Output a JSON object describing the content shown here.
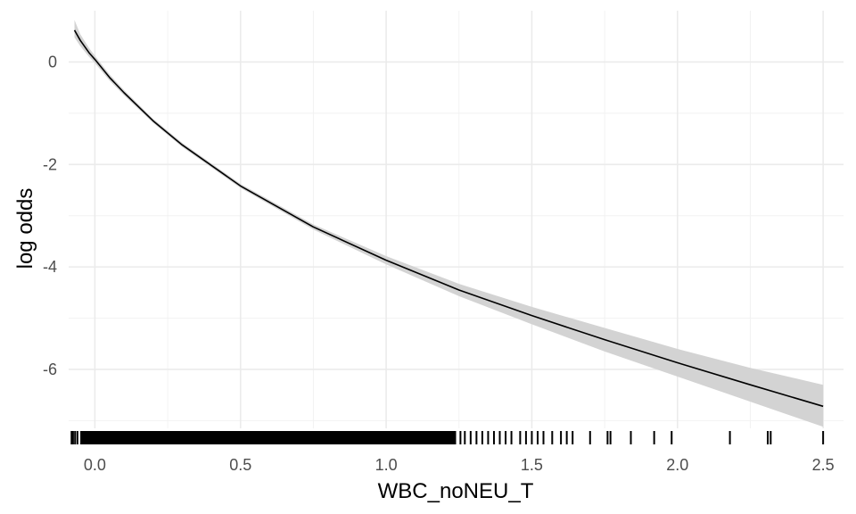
{
  "chart_data": {
    "type": "line",
    "title": "",
    "xlabel": "WBC_noNEU_T",
    "ylabel": "log odds",
    "xlim": [
      -0.09,
      2.57
    ],
    "ylim": [
      -7.15,
      1.0
    ],
    "x_ticks": [
      0.0,
      0.5,
      1.0,
      1.5,
      2.0,
      2.5
    ],
    "x_tick_labels": [
      "0.0",
      "0.5",
      "1.0",
      "1.5",
      "2.0",
      "2.5"
    ],
    "y_ticks": [
      0,
      -2,
      -4,
      -6
    ],
    "y_tick_labels": [
      "0",
      "-2",
      "-4",
      "-6"
    ],
    "grid": true,
    "series": [
      {
        "x": [
          -0.07,
          -0.05,
          -0.02,
          0.0,
          0.05,
          0.1,
          0.2,
          0.3,
          0.5,
          0.75,
          1.0,
          1.25,
          1.5,
          1.75,
          2.0,
          2.25,
          2.5
        ],
        "y": [
          0.62,
          0.42,
          0.18,
          0.05,
          -0.3,
          -0.6,
          -1.15,
          -1.62,
          -2.42,
          -3.22,
          -3.87,
          -4.45,
          -4.95,
          -5.42,
          -5.87,
          -6.3,
          -6.72
        ],
        "lower": [
          0.48,
          0.31,
          0.1,
          -0.02,
          -0.36,
          -0.65,
          -1.19,
          -1.66,
          -2.46,
          -3.27,
          -3.95,
          -4.57,
          -5.12,
          -5.65,
          -6.14,
          -6.63,
          -7.12
        ],
        "upper": [
          0.82,
          0.54,
          0.27,
          0.12,
          -0.24,
          -0.55,
          -1.11,
          -1.58,
          -2.38,
          -3.17,
          -3.79,
          -4.33,
          -4.78,
          -5.19,
          -5.6,
          -5.97,
          -6.3
        ],
        "color": "#000000",
        "band_color": "#d3d3d3"
      }
    ],
    "rug": {
      "dense_range": [
        -0.05,
        1.24
      ],
      "sparse_x": [
        -0.08,
        -0.075,
        -0.068,
        -0.06,
        1.255,
        1.27,
        1.29,
        1.31,
        1.33,
        1.35,
        1.37,
        1.39,
        1.41,
        1.43,
        1.46,
        1.48,
        1.5,
        1.52,
        1.54,
        1.57,
        1.6,
        1.62,
        1.64,
        1.7,
        1.76,
        1.77,
        1.84,
        1.92,
        1.98,
        2.18,
        2.31,
        2.32,
        2.5
      ]
    }
  }
}
